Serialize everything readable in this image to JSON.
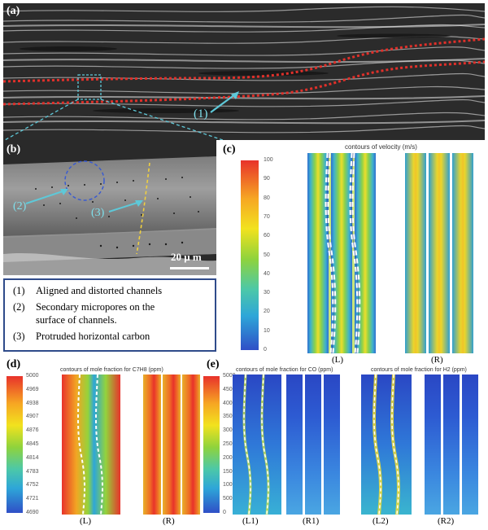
{
  "panels": {
    "a": {
      "label": "(a)",
      "callout": "(1)"
    },
    "b": {
      "label": "(b)",
      "callout2": "(2)",
      "callout3": "(3)",
      "scalebar": "20 μ m"
    },
    "c": {
      "label": "(c)",
      "title": "contours of velocity (m/s)",
      "ticks": [
        "100",
        "90",
        "80",
        "70",
        "60",
        "50",
        "40",
        "30",
        "20",
        "10",
        "0"
      ],
      "sub_left": "(L)",
      "sub_right": "(R)"
    },
    "d": {
      "label": "(d)",
      "title": "contours of mole fraction for C7H8 (ppm)",
      "ticks": [
        "5000",
        "4969",
        "4938",
        "4907",
        "4876",
        "4845",
        "4814",
        "4783",
        "4752",
        "4721",
        "4690"
      ],
      "sub_left": "(L)",
      "sub_right": "(R)"
    },
    "e": {
      "label": "(e)",
      "title_co": "contours of mole fraction for CO (ppm)",
      "title_h2": "contours of mole fraction for H2 (ppm)",
      "ticks": [
        "5000",
        "4500",
        "4000",
        "3500",
        "3000",
        "2500",
        "2000",
        "1500",
        "1000",
        "500",
        "0"
      ],
      "sub_l1": "(L1)",
      "sub_r1": "(R1)",
      "sub_l2": "(L2)",
      "sub_r2": "(R2)"
    }
  },
  "legend": [
    {
      "num": "(1)",
      "text": "Aligned and distorted channels"
    },
    {
      "num": "(2)",
      "text": "Secondary micropores on the",
      "text2": "surface of channels."
    },
    {
      "num": "(3)",
      "text": "Protruded horizontal carbon"
    }
  ],
  "colors": {
    "legend_border": "#2f4b8a",
    "red_dots": "#e0302a",
    "cyan_lines": "#5ec8d8",
    "yellow_dash": "#f0d040"
  }
}
